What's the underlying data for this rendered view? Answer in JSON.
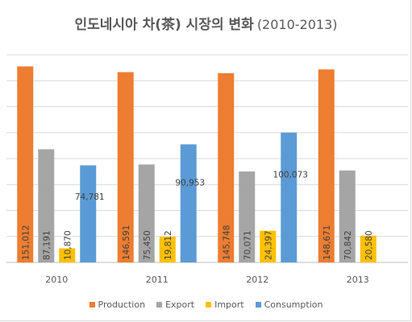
{
  "chart_data": {
    "type": "bar",
    "title": "인도네시아 차(茶) 시장의 변화",
    "subtitle": "(2010-2013)",
    "categories": [
      "2010",
      "2011",
      "2012",
      "2013"
    ],
    "series": [
      {
        "name": "Production",
        "color": "#ed7d31",
        "values": [
          151012,
          146591,
          145748,
          148671
        ],
        "labels": [
          "151,012",
          "146,591",
          "145,748",
          "148,671"
        ]
      },
      {
        "name": "Export",
        "color": "#a5a5a5",
        "values": [
          87191,
          75450,
          70071,
          70842
        ],
        "labels": [
          "87,191",
          "75,450",
          "70,071",
          "70,842"
        ]
      },
      {
        "name": "Import",
        "color": "#ffc000",
        "values": [
          10870,
          19812,
          24397,
          20580
        ],
        "labels": [
          "10,870",
          "19,812",
          "24,397",
          "20,580"
        ]
      },
      {
        "name": "Consumption",
        "color": "#5b9bd5",
        "values": [
          74781,
          90953,
          100073,
          null
        ],
        "labels": [
          "74,781",
          "90,953",
          "100,073",
          ""
        ]
      }
    ],
    "ylim": [
      0,
      160000
    ],
    "grid": true,
    "legend_position": "bottom"
  }
}
